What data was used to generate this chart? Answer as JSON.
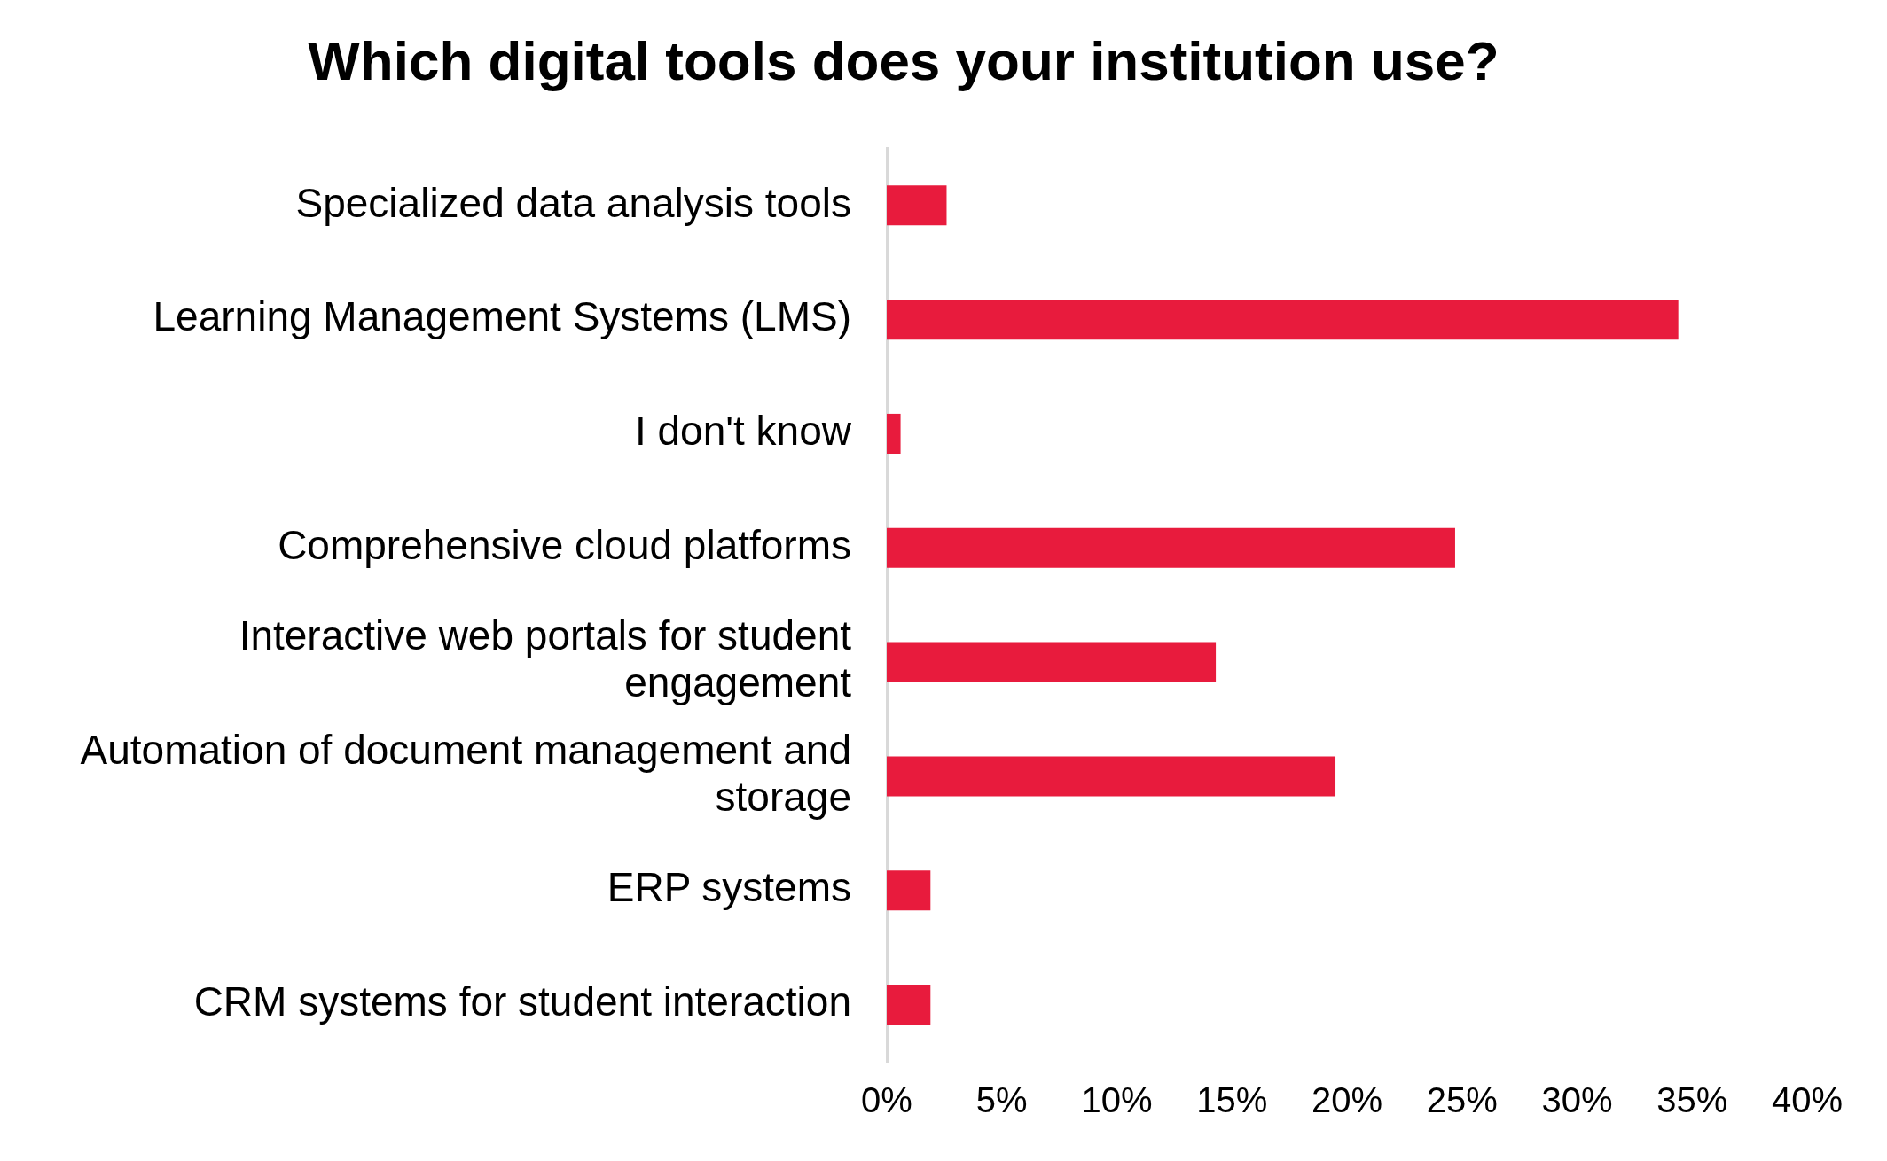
{
  "chart_data": {
    "type": "bar",
    "orientation": "horizontal",
    "title": "Which digital tools does your institution use?",
    "categories": [
      "Specialized data analysis tools",
      "Learning Management Systems (LMS)",
      "I don't know",
      "Comprehensive cloud platforms",
      "Interactive web portals for student engagement",
      "Automation of document management and storage",
      "ERP systems",
      "CRM systems for student interaction"
    ],
    "values": [
      2.6,
      34.4,
      0.6,
      24.7,
      14.3,
      19.5,
      1.9,
      1.9
    ],
    "color": "#e81b3d",
    "xlim": [
      0,
      40
    ],
    "xticks": [
      {
        "value": 0,
        "label": "0%"
      },
      {
        "value": 5,
        "label": "5%"
      },
      {
        "value": 10,
        "label": "10%"
      },
      {
        "value": 15,
        "label": "15%"
      },
      {
        "value": 20,
        "label": "20%"
      },
      {
        "value": 25,
        "label": "25%"
      },
      {
        "value": 30,
        "label": "30%"
      },
      {
        "value": 35,
        "label": "35%"
      },
      {
        "value": 40,
        "label": "40%"
      }
    ]
  }
}
